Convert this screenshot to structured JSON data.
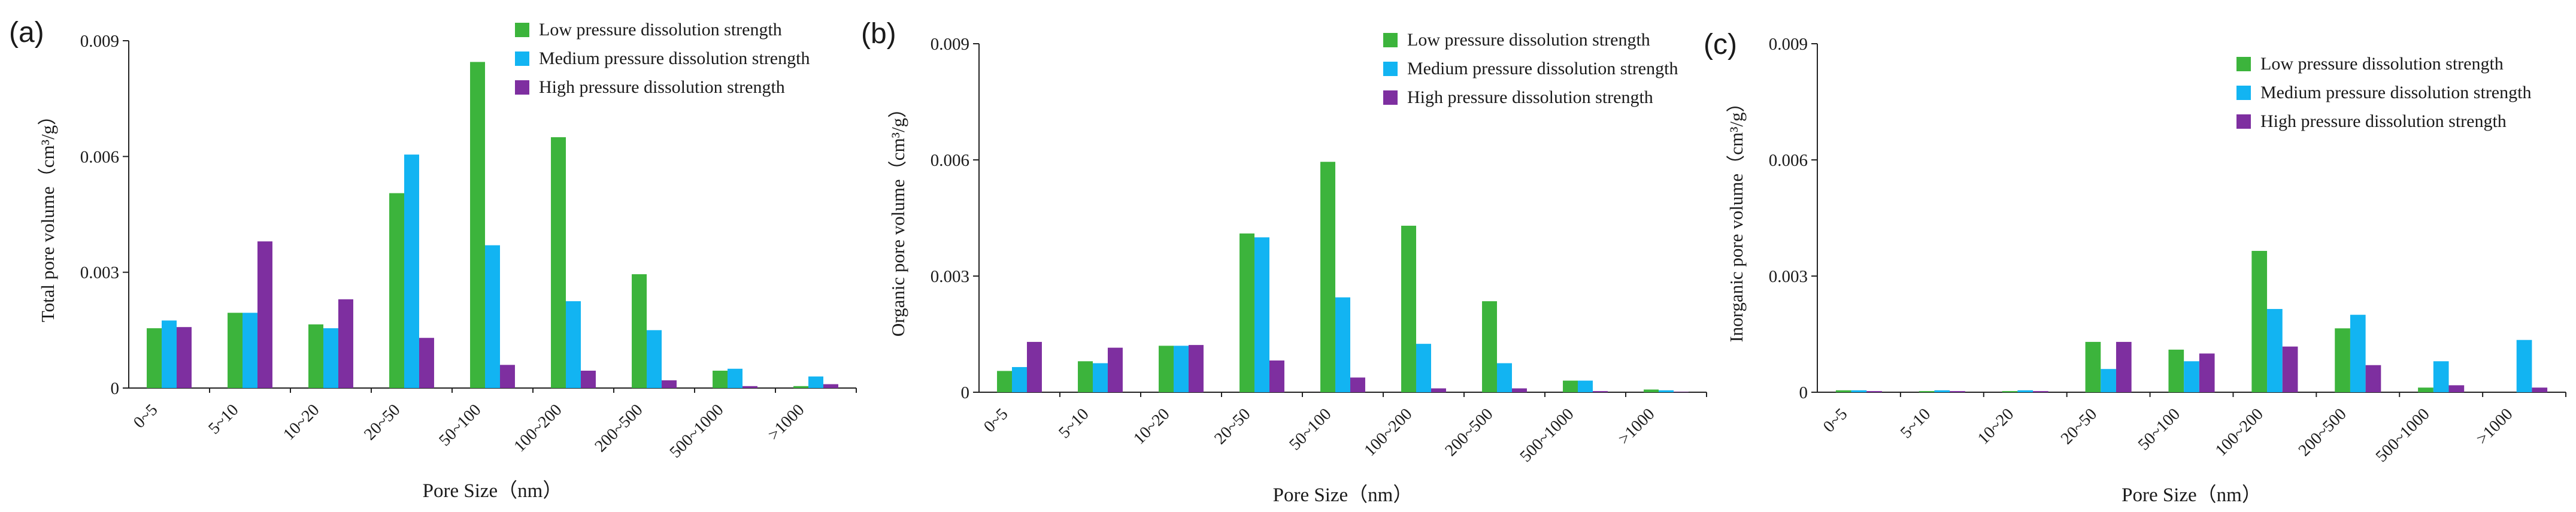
{
  "colors": {
    "low": "#3cb43c",
    "medium": "#12b4f2",
    "high": "#7e2fa0",
    "axis": "#222222"
  },
  "chart_data": [
    {
      "panel_label": "(a)",
      "type": "bar",
      "title": "",
      "xlabel": "Pore Size（nm）",
      "ylabel": "Total pore volume（cm³/g）",
      "ylim": [
        0,
        0.009
      ],
      "yticks": [
        "0",
        "0.003",
        "0.006",
        "0.009"
      ],
      "legend_position": "top-right",
      "categories": [
        "0~5",
        "5~10",
        "10~20",
        "20~50",
        "50~100",
        "100~200",
        "200~500",
        "500~1000",
        ">1000"
      ],
      "series": [
        {
          "name": "Low pressure dissolution strength",
          "color_key": "low",
          "values": [
            0.00155,
            0.00195,
            0.00165,
            0.00505,
            0.00845,
            0.0065,
            0.00295,
            0.00045,
            5e-05
          ]
        },
        {
          "name": "Medium pressure dissolution strength",
          "color_key": "medium",
          "values": [
            0.00175,
            0.00195,
            0.00155,
            0.00605,
            0.0037,
            0.00225,
            0.0015,
            0.0005,
            0.0003
          ]
        },
        {
          "name": "High pressure dissolution strength",
          "color_key": "high",
          "values": [
            0.00158,
            0.0038,
            0.0023,
            0.0013,
            0.0006,
            0.00045,
            0.0002,
            5e-05,
            0.0001
          ]
        }
      ]
    },
    {
      "panel_label": "(b)",
      "type": "bar",
      "title": "",
      "xlabel": "Pore Size（nm）",
      "ylabel": "Organic pore volume（cm³/g）",
      "ylim": [
        0,
        0.009
      ],
      "yticks": [
        "0",
        "0.003",
        "0.006",
        "0.009"
      ],
      "legend_position": "top-right",
      "categories": [
        "0~5",
        "5~10",
        "10~20",
        "20~50",
        "50~100",
        "100~200",
        "200~500",
        "500~1000",
        ">1000"
      ],
      "series": [
        {
          "name": "Low pressure dissolution strength",
          "color_key": "low",
          "values": [
            0.00055,
            0.0008,
            0.0012,
            0.0041,
            0.00595,
            0.0043,
            0.00235,
            0.0003,
            7e-05
          ]
        },
        {
          "name": "Medium pressure dissolution strength",
          "color_key": "medium",
          "values": [
            0.00065,
            0.00075,
            0.0012,
            0.004,
            0.00245,
            0.00125,
            0.00075,
            0.0003,
            5e-05
          ]
        },
        {
          "name": "High pressure dissolution strength",
          "color_key": "high",
          "values": [
            0.0013,
            0.00115,
            0.00122,
            0.00082,
            0.00038,
            0.0001,
            0.0001,
            3e-05,
            1e-05
          ]
        }
      ]
    },
    {
      "panel_label": "(c)",
      "type": "bar",
      "title": "",
      "xlabel": "Pore Size（nm）",
      "ylabel": "Inorganic pore volume（cm³/g）",
      "ylim": [
        0,
        0.009
      ],
      "yticks": [
        "0",
        "0.003",
        "0.006",
        "0.009"
      ],
      "legend_position": "top-right",
      "categories": [
        "0~5",
        "5~10",
        "10~20",
        "20~50",
        "50~100",
        "100~200",
        "200~500",
        "500~1000",
        ">1000"
      ],
      "series": [
        {
          "name": "Low pressure dissolution strength",
          "color_key": "low",
          "values": [
            5e-05,
            3e-05,
            3e-05,
            0.0013,
            0.0011,
            0.00365,
            0.00165,
            0.00012,
            0.0
          ]
        },
        {
          "name": "Medium pressure dissolution strength",
          "color_key": "medium",
          "values": [
            5e-05,
            5e-05,
            5e-05,
            0.0006,
            0.0008,
            0.00215,
            0.002,
            0.0008,
            0.00135
          ]
        },
        {
          "name": "High pressure dissolution strength",
          "color_key": "high",
          "values": [
            3e-05,
            3e-05,
            3e-05,
            0.0013,
            0.001,
            0.00118,
            0.0007,
            0.00018,
            0.00012
          ]
        }
      ]
    }
  ]
}
